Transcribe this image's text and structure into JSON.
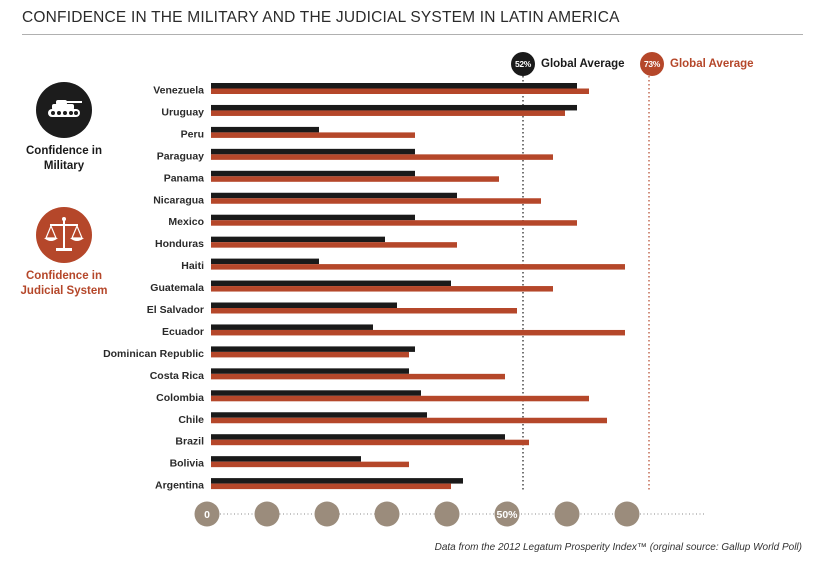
{
  "title": "CONFIDENCE IN THE MILITARY AND THE JUDICIAL SYSTEM IN LATIN AMERICA",
  "legend": {
    "military_label": "Confidence in Military",
    "military_icon": "tank-icon",
    "judicial_label": "Confidence in Judicial System",
    "judicial_icon": "scales-of-justice-icon"
  },
  "averages": {
    "military": {
      "badge": "52%",
      "label": "Global Average",
      "value": 52,
      "color": "#1a1a1a"
    },
    "judicial": {
      "badge": "73%",
      "label": "Global Average",
      "value": 73,
      "color": "#b5472a"
    }
  },
  "source": "Data from the 2012 Legatum Prosperity Index™ (orginal source: Gallup World Poll)",
  "colors": {
    "military": "#1a1a1a",
    "judicial": "#b5472a",
    "tick_circle": "#9b8c7c"
  },
  "chart_data": {
    "type": "bar",
    "orientation": "horizontal",
    "categories": [
      "Venezuela",
      "Uruguay",
      "Peru",
      "Paraguay",
      "Panama",
      "Nicaragua",
      "Mexico",
      "Honduras",
      "Haiti",
      "Guatemala",
      "El Salvador",
      "Ecuador",
      "Dominican Republic",
      "Costa Rica",
      "Colombia",
      "Chile",
      "Brazil",
      "Bolivia",
      "Argentina"
    ],
    "series": [
      {
        "name": "Confidence in Military",
        "color": "#1a1a1a",
        "values": [
          61,
          61,
          18,
          34,
          34,
          41,
          34,
          29,
          18,
          40,
          31,
          27,
          34,
          33,
          35,
          36,
          49,
          25,
          42
        ]
      },
      {
        "name": "Confidence in Judicial System",
        "color": "#b5472a",
        "values": [
          63,
          59,
          34,
          57,
          48,
          55,
          61,
          41,
          69,
          57,
          51,
          69,
          33,
          49,
          63,
          66,
          53,
          33,
          40
        ]
      }
    ],
    "xlim": [
      0,
      70
    ],
    "xticks": [
      0,
      10,
      20,
      30,
      40,
      50,
      60,
      70
    ],
    "xtick_labels": [
      "0",
      "",
      "",
      "",
      "",
      "50%",
      "",
      ""
    ],
    "reference_lines": [
      {
        "value": 52,
        "series": "Confidence in Military"
      },
      {
        "value": 73,
        "series": "Confidence in Judicial System"
      }
    ],
    "grid": false
  }
}
